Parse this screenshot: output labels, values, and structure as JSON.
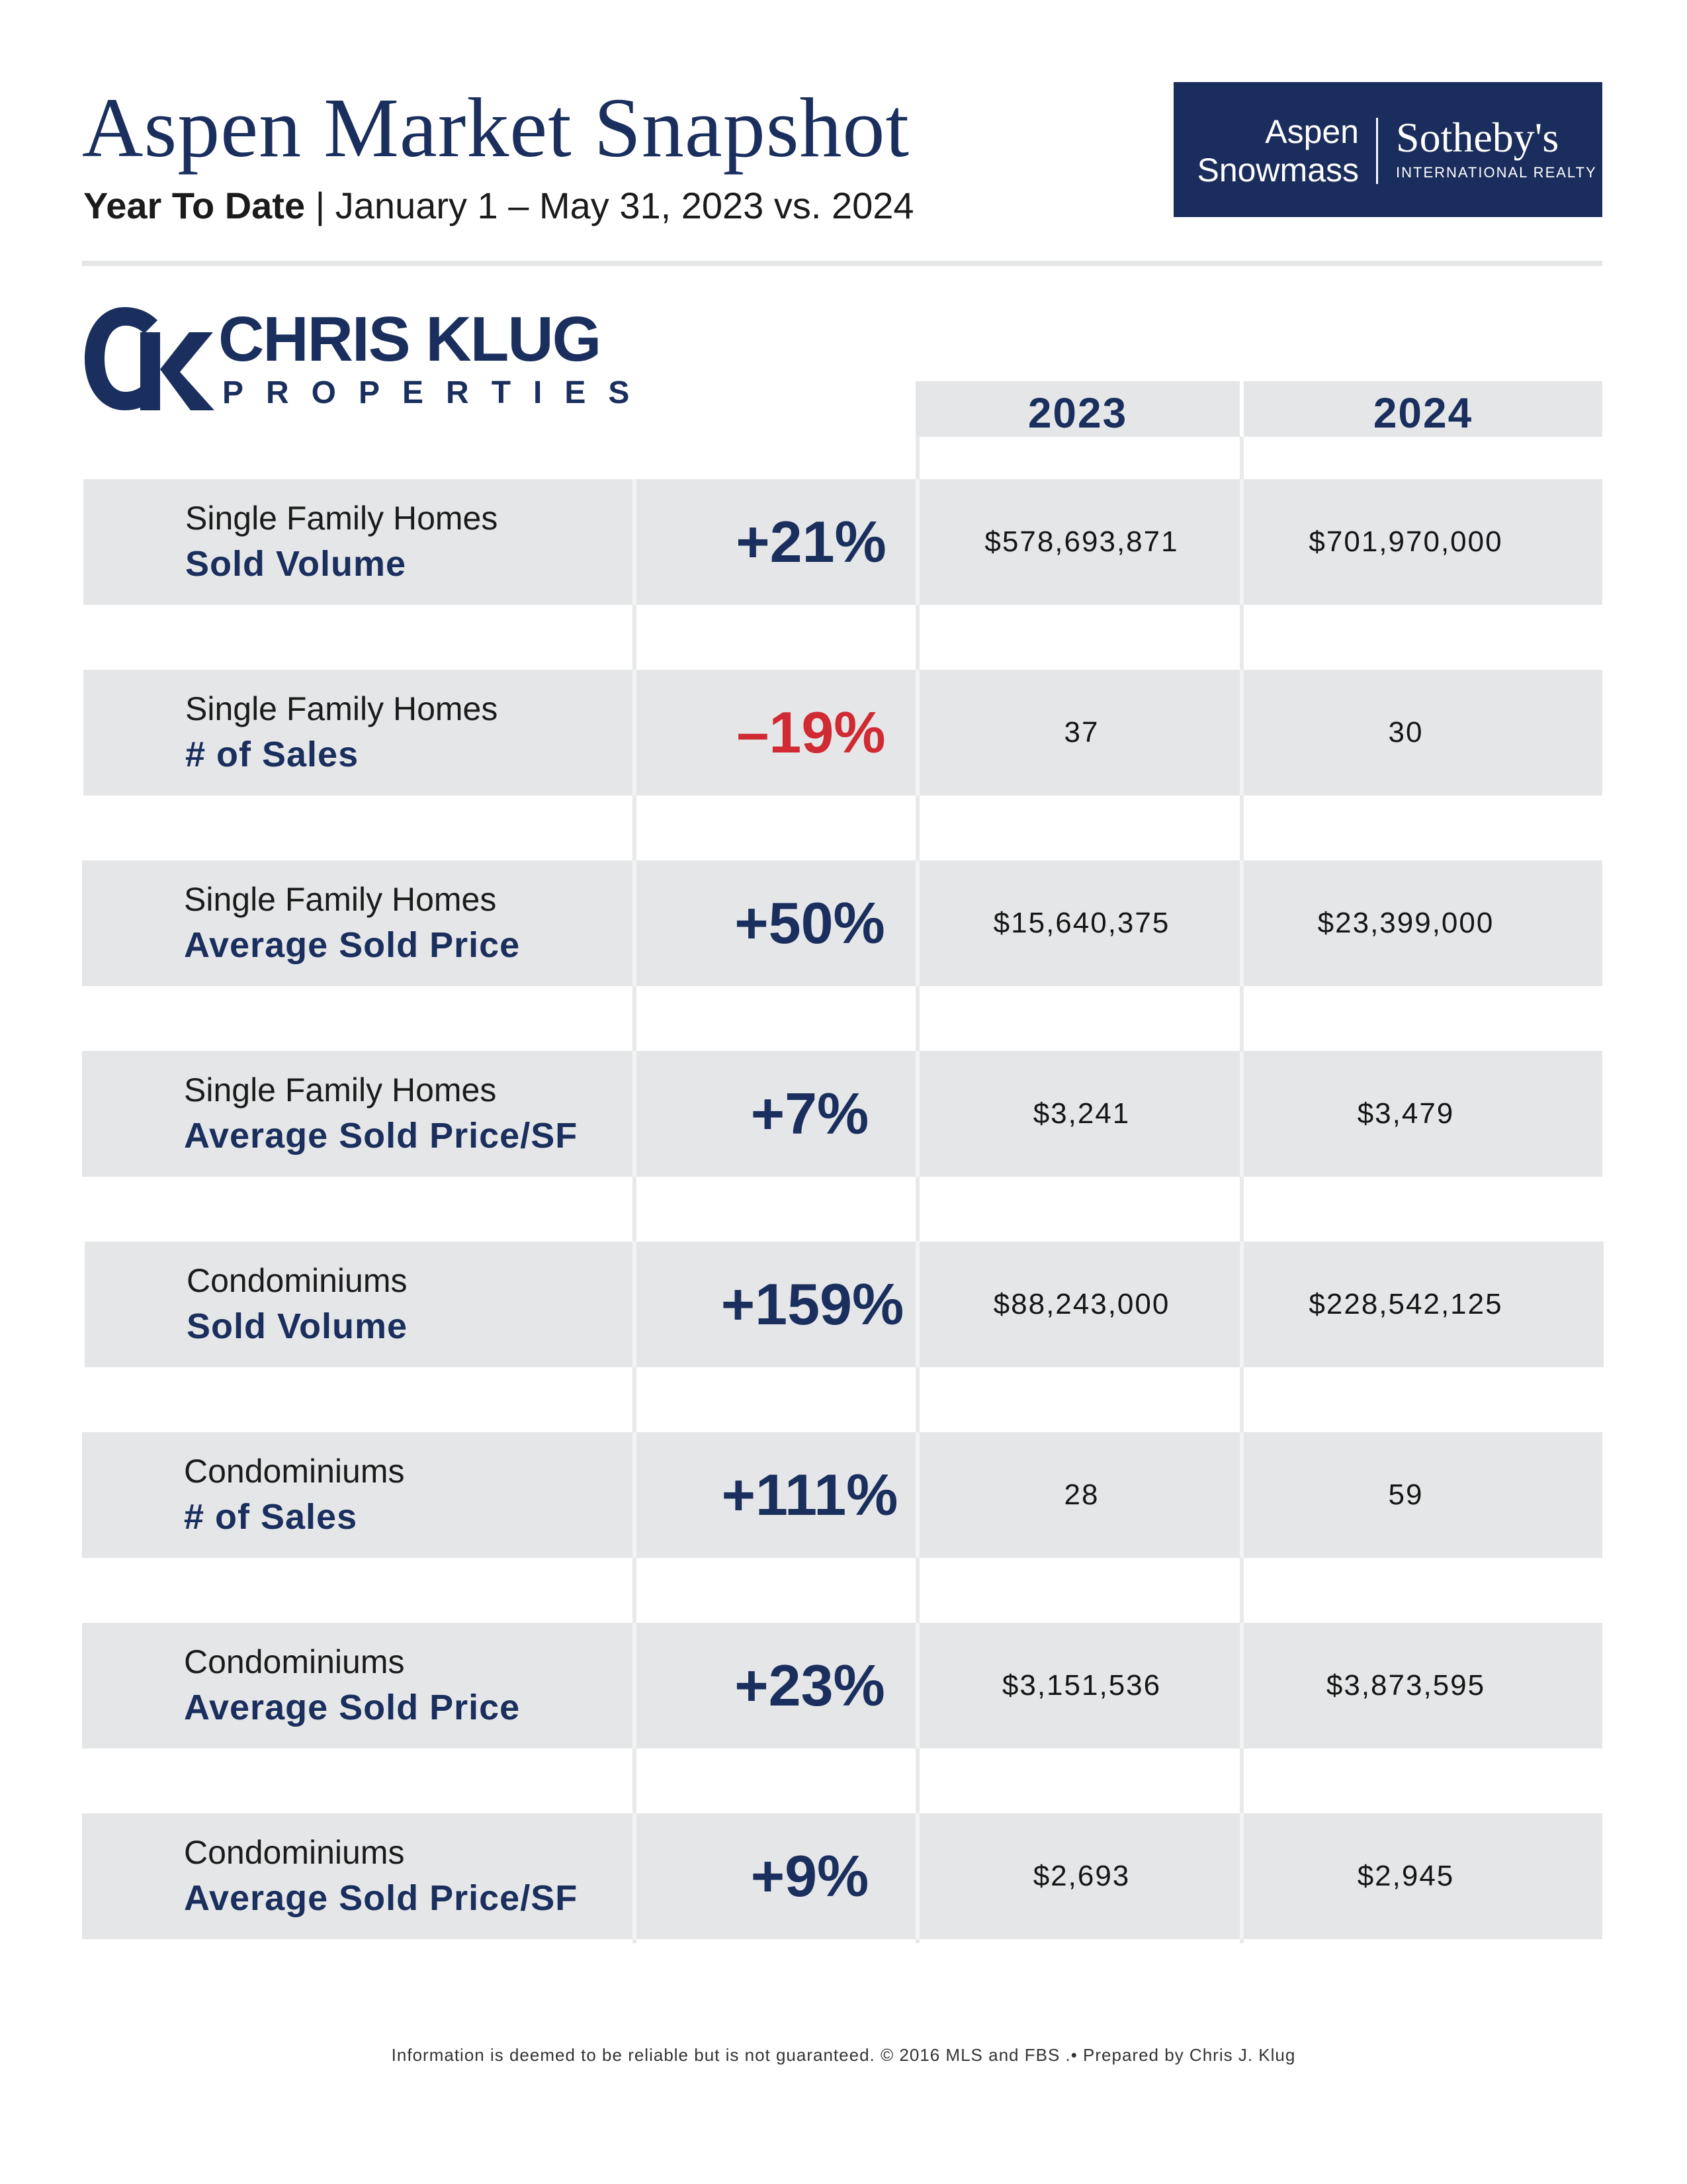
{
  "header": {
    "title": "Aspen Market Snapshot",
    "subtitle_bold": "Year To Date",
    "subtitle_rest": " | January 1 – May 31, 2023 vs. 2024"
  },
  "brand": {
    "line1": "Aspen",
    "line2": "Snowmass",
    "sothebys": "Sotheby's",
    "intl": "INTERNATIONAL REALTY"
  },
  "logo": {
    "name": "CHRIS KLUG",
    "sub": "PROPERTIES"
  },
  "table": {
    "year_a": "2023",
    "year_b": "2024",
    "rows": [
      {
        "category": "Single Family Homes",
        "metric": "Sold Volume",
        "change": "+21%",
        "v2023": "$578,693,871",
        "v2024": "$701,970,000"
      },
      {
        "category": "Single Family Homes",
        "metric": "# of Sales",
        "change": "–19%",
        "v2023": "37",
        "v2024": "30"
      },
      {
        "category": "Single Family Homes",
        "metric": "Average Sold Price",
        "change": "+50%",
        "v2023": "$15,640,375",
        "v2024": "$23,399,000"
      },
      {
        "category": "Single Family Homes",
        "metric": "Average Sold Price/SF",
        "change": "+7%",
        "v2023": "$3,241",
        "v2024": "$3,479"
      },
      {
        "category": "Condominiums",
        "metric": "Sold Volume",
        "change": "+159%",
        "v2023": "$88,243,000",
        "v2024": "$228,542,125"
      },
      {
        "category": "Condominiums",
        "metric": "# of Sales",
        "change": "+111%",
        "v2023": "28",
        "v2024": "59"
      },
      {
        "category": "Condominiums",
        "metric": "Average Sold Price",
        "change": "+23%",
        "v2023": "$3,151,536",
        "v2024": "$3,873,595"
      },
      {
        "category": "Condominiums",
        "metric": "Average Sold Price/SF",
        "change": "+9%",
        "v2023": "$2,693",
        "v2024": "$2,945"
      }
    ]
  },
  "colors": {
    "navy": "#1a2f5e",
    "negative": "#d02a32",
    "row_bg": "#e5e6e7"
  },
  "footer": "Information is deemed to be reliable but is not guaranteed. © 2016 MLS and FBS .• Prepared by Chris J. Klug"
}
